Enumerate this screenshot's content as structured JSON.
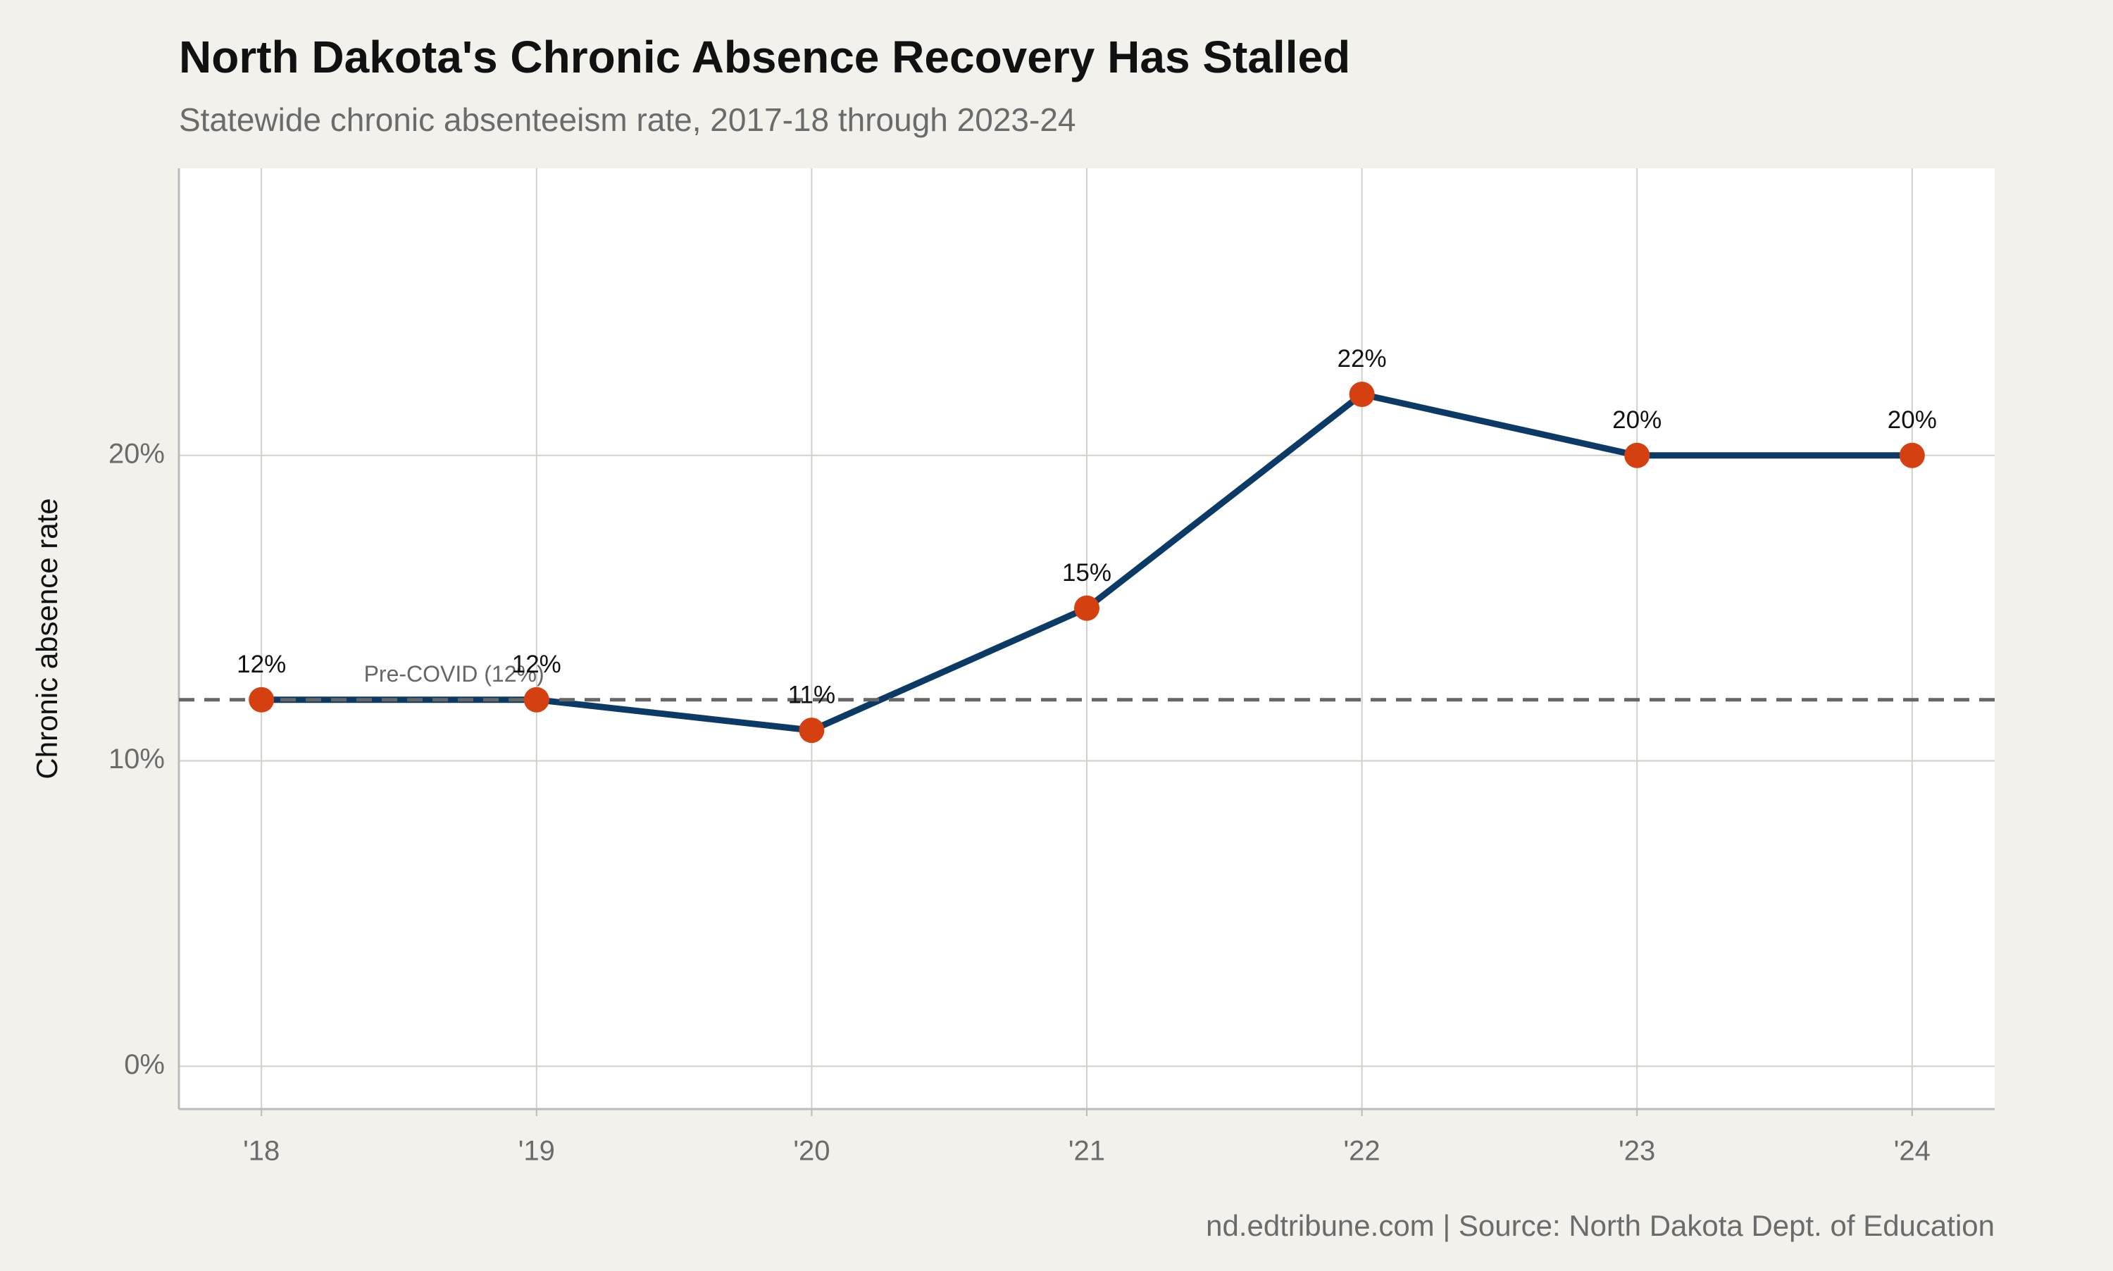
{
  "chart_data": {
    "type": "line",
    "title": "North Dakota's Chronic Absence Recovery Has Stalled",
    "subtitle": "Statewide chronic absenteeism rate, 2017-18 through 2023-24",
    "y_label": "Chronic absence rate",
    "caption": "nd.edtribune.com | Source: North Dakota Dept. of Education",
    "categories": [
      "'18",
      "'19",
      "'20",
      "'21",
      "'22",
      "'23",
      "'24"
    ],
    "values": [
      12,
      12,
      11,
      15,
      22,
      20,
      20
    ],
    "value_labels": [
      "12%",
      "12%",
      "11%",
      "15%",
      "22%",
      "20%",
      "20%"
    ],
    "color": "#0b3a66",
    "marker_color": "#d4400f",
    "ylim": [
      -1.4,
      29.4
    ],
    "yticks": [
      {
        "value": 0,
        "label": "0%"
      },
      {
        "value": 10,
        "label": "10%"
      },
      {
        "value": 20,
        "label": "20%"
      }
    ],
    "grid": true,
    "reference_line": {
      "value": 12,
      "label": "Pre-COVID (12%)",
      "color": "#666666"
    }
  }
}
